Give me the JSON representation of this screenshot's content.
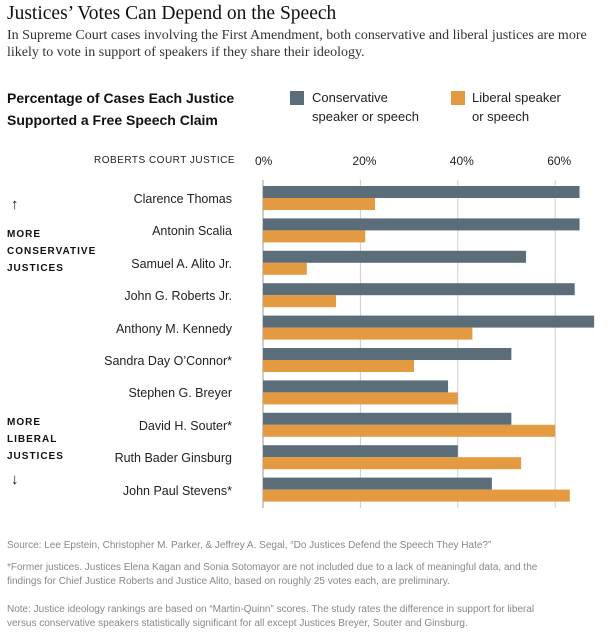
{
  "header": {
    "title": "Justices’ Votes Can Depend on the Speech",
    "subtitle": "In Supreme Court cases involving the First Amendment, both conservative and liberal justices are more likely to vote in support of speakers if they share their ideology."
  },
  "chart_heading": {
    "line1": "Percentage of Cases Each Justice",
    "line2": "Supported a Free Speech Claim"
  },
  "legend": {
    "conservative_line1": "Conservative",
    "conservative_line2": "speaker or speech",
    "liberal_line1": "Liberal speaker",
    "liberal_line2": "or speech"
  },
  "axis": {
    "category_title": "ROBERTS COURT JUSTICE"
  },
  "side_notes": {
    "more_conservative": [
      "MORE",
      "CONSERVATIVE",
      "JUSTICES"
    ],
    "more_liberal": [
      "MORE",
      "LIBERAL",
      "JUSTICES"
    ],
    "up_arrow": "↑",
    "down_arrow": "↓"
  },
  "colors": {
    "conservative": "#5b6d79",
    "liberal": "#e39a41",
    "gridline": "#cccccc"
  },
  "chart_data": {
    "type": "bar",
    "orientation": "horizontal",
    "categories": [
      "Clarence Thomas",
      "Antonin Scalia",
      "Samuel A. Alito Jr.",
      "John G. Roberts Jr.",
      "Anthony M. Kennedy",
      "Sandra Day O’Connor*",
      "Stephen G. Breyer",
      "David H. Souter*",
      "Ruth Bader Ginsburg",
      "John Paul Stevens*"
    ],
    "series": [
      {
        "name": "Conservative speaker or speech",
        "values": [
          65,
          65,
          54,
          64,
          68,
          51,
          38,
          51,
          40,
          47
        ]
      },
      {
        "name": "Liberal speaker or speech",
        "values": [
          23,
          21,
          9,
          15,
          43,
          31,
          40,
          60,
          53,
          63
        ]
      }
    ],
    "xlim": [
      0,
      68
    ],
    "xticks": [
      0,
      20,
      40,
      60
    ],
    "xtick_labels": [
      "0%",
      "20%",
      "40%",
      "60%"
    ],
    "grid": true,
    "legend_position": "top"
  },
  "footer": {
    "source": "Source: Lee Epstein, Christopher M. Parker, & Jeffrey A. Segal, “Do Justices Defend the Speech They Hate?”",
    "footnote_line1": "*Former justices. Justices Elena Kagan and Sonia Sotomayor are not included due to a lack of meaningful data, and the",
    "footnote_line2": "findings for Chief Justice Roberts and Justice Alito, based on roughly 25 votes each, are preliminary.",
    "note_line1": "Note: Justice ideology rankings are based on “Martin-Quinn” scores. The study rates the difference in support for liberal",
    "note_line2": "versus conservative speakers statistically significant for all except Justices Breyer, Souter and Ginsburg."
  }
}
